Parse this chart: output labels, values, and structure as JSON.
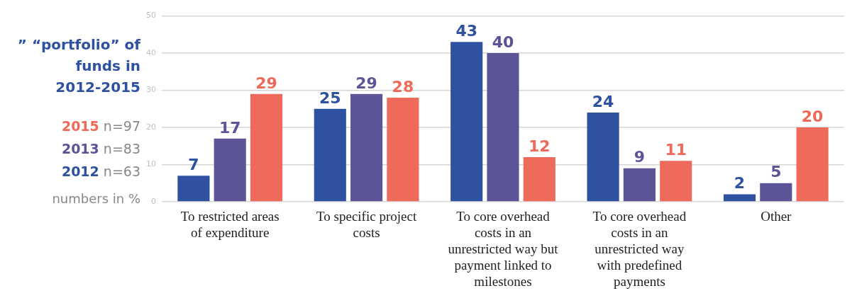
{
  "chart_data": {
    "type": "bar",
    "title": "” “portfolio” of funds in 2012-2015",
    "categories": [
      "To restricted areas of expenditure",
      "To specific project costs",
      "To core overhead costs in an unrestricted way but payment linked to milestones",
      "To core overhead costs in an unrestricted way with predefined payments",
      "Other"
    ],
    "series": [
      {
        "name": "2012",
        "color": "#2e52a0",
        "values": [
          7,
          25,
          43,
          24,
          2
        ]
      },
      {
        "name": "2013",
        "color": "#5b5598",
        "values": [
          17,
          29,
          40,
          9,
          5
        ]
      },
      {
        "name": "2015",
        "color": "#ee6a5a",
        "values": [
          29,
          28,
          12,
          11,
          20
        ]
      }
    ],
    "annotations": [
      "n=63",
      "n=83",
      "n=97",
      "numbers in %"
    ],
    "ylim": [
      0,
      50
    ],
    "yticks": [
      0,
      10,
      20,
      30,
      40,
      50
    ],
    "grid": "y",
    "legend": "left",
    "data_labels": true
  }
}
